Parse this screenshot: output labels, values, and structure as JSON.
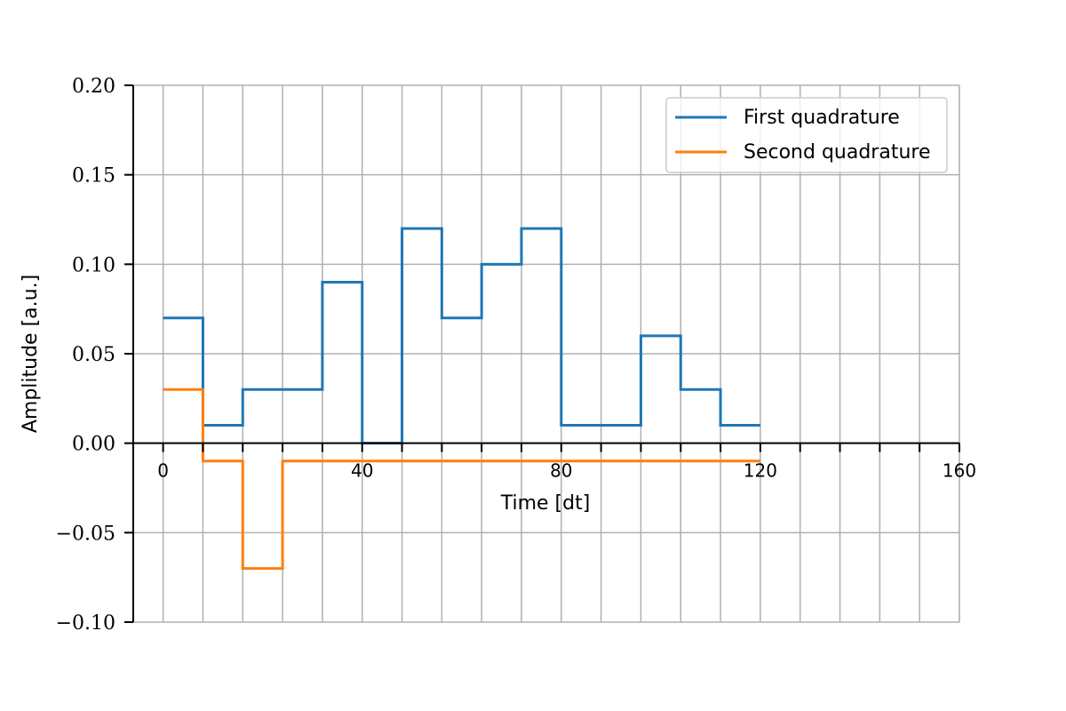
{
  "chart_data": {
    "type": "line",
    "step": "post",
    "title": "",
    "xlabel": "Time [dt]",
    "ylabel": "Amplitude [a.u.]",
    "xlim": [
      -6,
      160
    ],
    "ylim": [
      -0.1,
      0.2
    ],
    "x_ticks": [
      0,
      40,
      80,
      120,
      160
    ],
    "x_tick_labels": [
      "0",
      "40",
      "80",
      "120",
      "160"
    ],
    "x_minor_ticks": [
      0,
      8,
      16,
      24,
      32,
      40,
      48,
      56,
      64,
      72,
      80,
      88,
      96,
      104,
      112,
      120,
      128,
      136,
      144,
      152,
      160
    ],
    "y_ticks": [
      -0.1,
      -0.05,
      0.0,
      0.05,
      0.1,
      0.15,
      0.2
    ],
    "y_tick_labels": [
      "−0.10",
      "−0.05",
      "0.00",
      "0.05",
      "0.10",
      "0.15",
      "0.20"
    ],
    "grid": true,
    "legend_position": "upper-right",
    "x": [
      0,
      8,
      16,
      24,
      32,
      40,
      48,
      56,
      64,
      72,
      80,
      88,
      96,
      104,
      112,
      120
    ],
    "series": [
      {
        "name": "First quadrature",
        "color": "#1f77b4",
        "values": [
          0.07,
          0.01,
          0.03,
          0.03,
          0.09,
          0.0,
          0.12,
          0.07,
          0.1,
          0.12,
          0.01,
          0.01,
          0.06,
          0.03,
          0.01,
          0.01
        ]
      },
      {
        "name": "Second quadrature",
        "color": "#ff7f0e",
        "values": [
          0.03,
          -0.01,
          -0.07,
          -0.01,
          -0.01,
          -0.01,
          -0.01,
          -0.01,
          -0.01,
          -0.01,
          -0.01,
          -0.01,
          -0.01,
          -0.01,
          -0.01,
          -0.01
        ]
      }
    ]
  }
}
